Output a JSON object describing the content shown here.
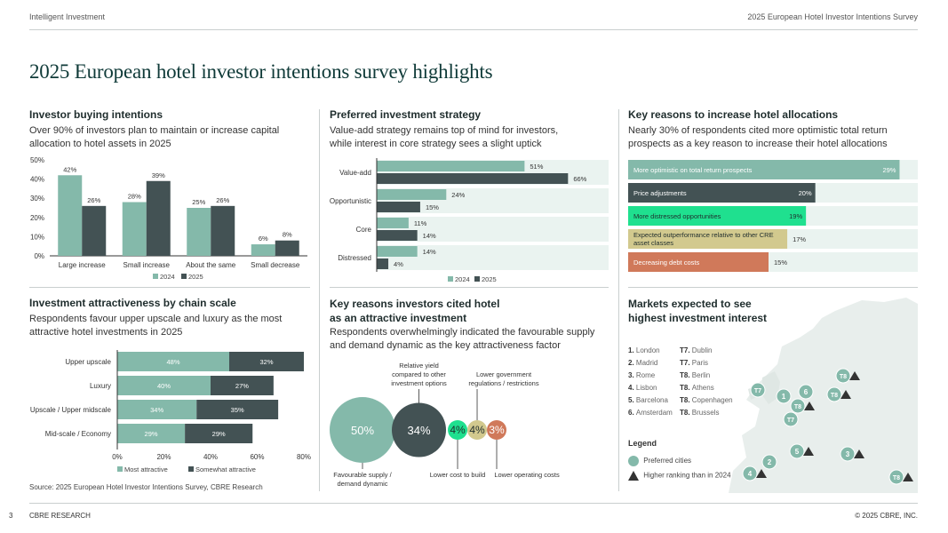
{
  "header": {
    "left": "Intelligent Investment",
    "right": "2025 European Hotel Investor Intentions Survey"
  },
  "page_title": "2025 European hotel investor intentions survey highlights",
  "footer": {
    "page_number": "3",
    "left": "CBRE RESEARCH",
    "right": "© 2025 CBRE, INC."
  },
  "source": "Source: 2025 European Hotel Investor Intentions Survey, CBRE Research",
  "colors": {
    "c2024": "#84b9aa",
    "c2025": "#435254",
    "teal_light": "#84b9aa",
    "dark": "#435254",
    "green": "#1fe08f",
    "sand": "#d2c98e",
    "terracotta": "#d0795a",
    "track": "#eaf3f0"
  },
  "sections": {
    "buying": {
      "title": "Investor buying intentions",
      "subtitle_1": "Over 90% of investors plan to maintain or increase capital",
      "subtitle_2": "allocation to hotel assets in 2025"
    },
    "strategy": {
      "title": "Preferred investment strategy",
      "subtitle_1": "Value-add strategy remains top of mind for investors,",
      "subtitle_2": "while interest in core strategy sees a slight uptick"
    },
    "reasons_increase": {
      "title": "Key reasons to increase hotel allocations",
      "subtitle_1": "Nearly 30% of respondents cited more optimistic total return",
      "subtitle_2": "prospects as a key reason to increase their hotel allocations"
    },
    "chain": {
      "title": "Investment attractiveness by chain scale",
      "subtitle_1": "Respondents favour upper upscale and luxury as the most",
      "subtitle_2": "attractive hotel investments in 2025"
    },
    "attractive": {
      "title_1": "Key reasons investors cited hotel",
      "title_2": "as an attractive investment",
      "subtitle_1": "Respondents overwhelmingly indicated the favourable supply",
      "subtitle_2": "and demand dynamic as the key attractiveness factor"
    },
    "markets": {
      "title_1": "Markets expected to see",
      "title_2": "highest investment interest",
      "col1": [
        {
          "rank": "1.",
          "city": "London"
        },
        {
          "rank": "2.",
          "city": "Madrid"
        },
        {
          "rank": "3.",
          "city": "Rome"
        },
        {
          "rank": "4.",
          "city": "Lisbon"
        },
        {
          "rank": "5.",
          "city": "Barcelona"
        },
        {
          "rank": "6.",
          "city": "Amsterdam"
        }
      ],
      "col2": [
        {
          "rank": "T7.",
          "city": "Dublin"
        },
        {
          "rank": "T7.",
          "city": "Paris"
        },
        {
          "rank": "T8.",
          "city": "Berlin"
        },
        {
          "rank": "T8.",
          "city": "Athens"
        },
        {
          "rank": "T8.",
          "city": "Copenhagen"
        },
        {
          "rank": "T8.",
          "city": "Brussels"
        }
      ],
      "legend_title": "Legend",
      "legend_preferred": "Preferred cities",
      "legend_higher": "Higher ranking than in 2024",
      "map_labels": [
        "1",
        "2",
        "3",
        "4",
        "5",
        "6",
        "T7",
        "T7",
        "T8",
        "T8",
        "T8",
        "T8"
      ]
    }
  },
  "chart_data": [
    {
      "id": "buying",
      "type": "bar",
      "categories": [
        "Large increase",
        "Small increase",
        "About the same",
        "Small decrease"
      ],
      "series": [
        {
          "name": "2024",
          "values": [
            42,
            28,
            25,
            6
          ]
        },
        {
          "name": "2025",
          "values": [
            26,
            39,
            26,
            8
          ]
        }
      ],
      "ylim": [
        0,
        50
      ],
      "yticks": [
        "0%",
        "10%",
        "20%",
        "30%",
        "40%",
        "50%"
      ],
      "value_suffix": "%"
    },
    {
      "id": "strategy",
      "type": "bar",
      "orientation": "horizontal",
      "categories": [
        "Value-add",
        "Opportunistic",
        "Core",
        "Distressed"
      ],
      "series": [
        {
          "name": "2024",
          "values": [
            51,
            24,
            11,
            14
          ]
        },
        {
          "name": "2025",
          "values": [
            66,
            15,
            14,
            4
          ]
        }
      ],
      "xlim": [
        0,
        80
      ],
      "value_suffix": "%"
    },
    {
      "id": "reasons_increase",
      "type": "bar",
      "orientation": "horizontal",
      "categories": [
        "More optimistic on total return prospects",
        "Price adjustments",
        "More distressed opportunities",
        "Expected outperformance relative to other CRE asset classes",
        "Decreasing debt costs"
      ],
      "values": [
        29,
        20,
        19,
        17,
        15
      ],
      "xlim": [
        0,
        30
      ],
      "value_suffix": "%"
    },
    {
      "id": "chain",
      "type": "bar",
      "orientation": "horizontal",
      "stacked": true,
      "categories": [
        "Upper upscale",
        "Luxury",
        "Upscale / Upper midscale",
        "Mid-scale / Economy"
      ],
      "series": [
        {
          "name": "Most attractive",
          "values": [
            48,
            40,
            34,
            29
          ]
        },
        {
          "name": "Somewhat attractive",
          "values": [
            32,
            27,
            35,
            29
          ]
        }
      ],
      "xlim": [
        0,
        80
      ],
      "xticks": [
        "0%",
        "20%",
        "40%",
        "60%",
        "80%"
      ],
      "value_suffix": "%"
    },
    {
      "id": "attractive",
      "type": "bubble",
      "categories": [
        "Favourable supply / demand dynamic",
        "Relative yield compared to other investment options",
        "Lower cost to build",
        "Lower government regulations / restrictions",
        "Lower operating costs"
      ],
      "values": [
        50,
        34,
        4,
        4,
        3
      ],
      "value_suffix": "%"
    }
  ]
}
